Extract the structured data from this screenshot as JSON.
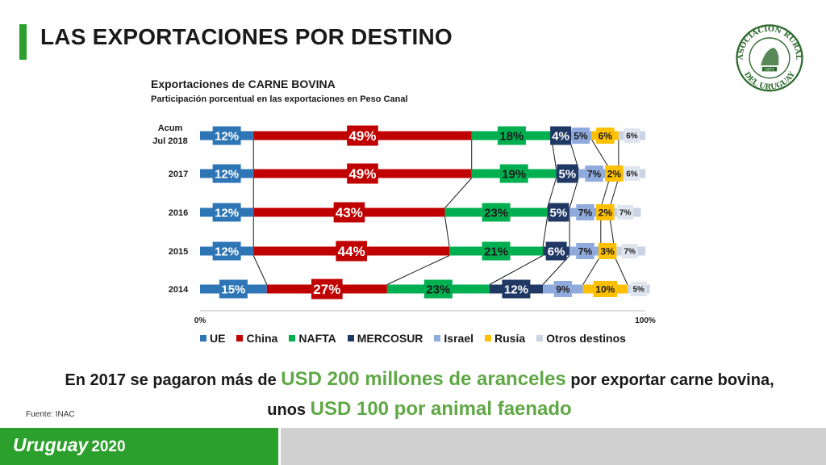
{
  "slide": {
    "title": "LAS EXPORTACIONES POR DESTINO",
    "source": "Fuente: INAC",
    "message_part1": "En 2017 se pagaron más de ",
    "message_highlight1": "USD 200 millones de aranceles",
    "message_part2": " por exportar carne bovina,",
    "message_part3": "unos ",
    "message_highlight2": "USD 100 por animal faenado",
    "footer_brand": "Uruguay",
    "footer_year": "2020",
    "logo_text_top": "ASOCIACION RURAL",
    "logo_text_bottom": "DEL URUGUAY",
    "logo_year": "1871"
  },
  "chart_data": {
    "type": "bar",
    "orientation": "horizontal-stacked-100",
    "title": "Exportaciones de CARNE BOVINA",
    "subtitle": "Participación porcentual en las exportaciones en Peso Canal",
    "categories": [
      "Acum Jul 2018",
      "2017",
      "2016",
      "2015",
      "2014"
    ],
    "x_tick_labels": [
      "0%",
      "100%"
    ],
    "xlim": [
      0,
      100
    ],
    "legend_position": "bottom",
    "series": [
      {
        "name": "UE",
        "color": "#2e75b6",
        "values": [
          12,
          12,
          12,
          12,
          15
        ]
      },
      {
        "name": "China",
        "color": "#c00000",
        "values": [
          49,
          49,
          43,
          44,
          27
        ]
      },
      {
        "name": "NAFTA",
        "color": "#00b050",
        "values": [
          18,
          19,
          23,
          21,
          23
        ]
      },
      {
        "name": "MERCOSUR",
        "color": "#203864",
        "values": [
          4,
          5,
          5,
          6,
          12
        ]
      },
      {
        "name": "Israel",
        "color": "#8faadc",
        "values": [
          5,
          7,
          7,
          7,
          9
        ]
      },
      {
        "name": "Rusia",
        "color": "#ffc000",
        "values": [
          6,
          2,
          2,
          3,
          10
        ]
      },
      {
        "name": "Otros destinos",
        "color": "#c9d3e3",
        "values": [
          6,
          6,
          7,
          7,
          5
        ]
      }
    ]
  }
}
